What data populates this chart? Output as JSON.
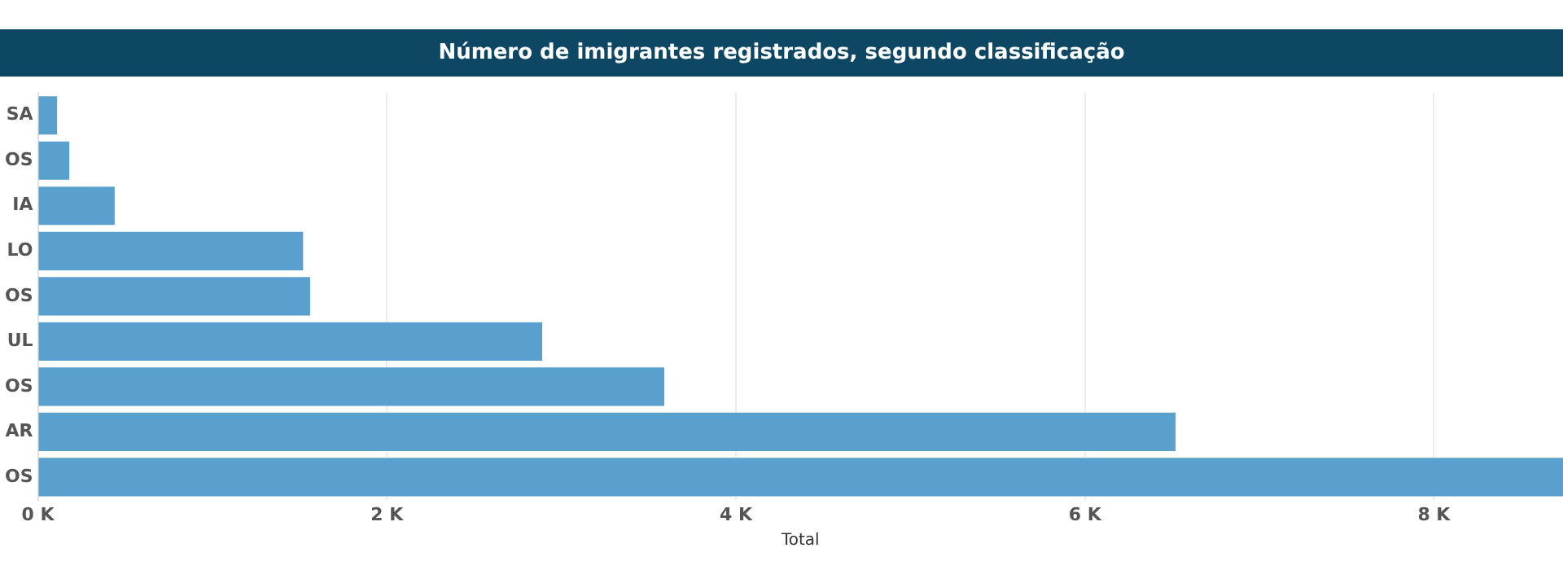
{
  "chart_data": {
    "type": "bar",
    "orientation": "horizontal",
    "title": "Número de imigrantes registrados, segundo classificação",
    "xlabel": "Total",
    "categories": [
      "SA",
      "OS",
      "IA",
      "LO",
      "OS",
      "UL",
      "OS",
      "AR",
      "OS"
    ],
    "values": [
      110,
      180,
      440,
      1520,
      1560,
      2890,
      3590,
      6520,
      8740
    ],
    "color": "#5aa0cf",
    "xlim": [
      0,
      8740
    ],
    "xticks": [
      {
        "value": 0,
        "label": "0 K"
      },
      {
        "value": 2000,
        "label": "2 K"
      },
      {
        "value": 4000,
        "label": "4 K"
      },
      {
        "value": 6000,
        "label": "6 K"
      },
      {
        "value": 8000,
        "label": "8 K"
      }
    ],
    "grid": "x",
    "legend": false
  }
}
